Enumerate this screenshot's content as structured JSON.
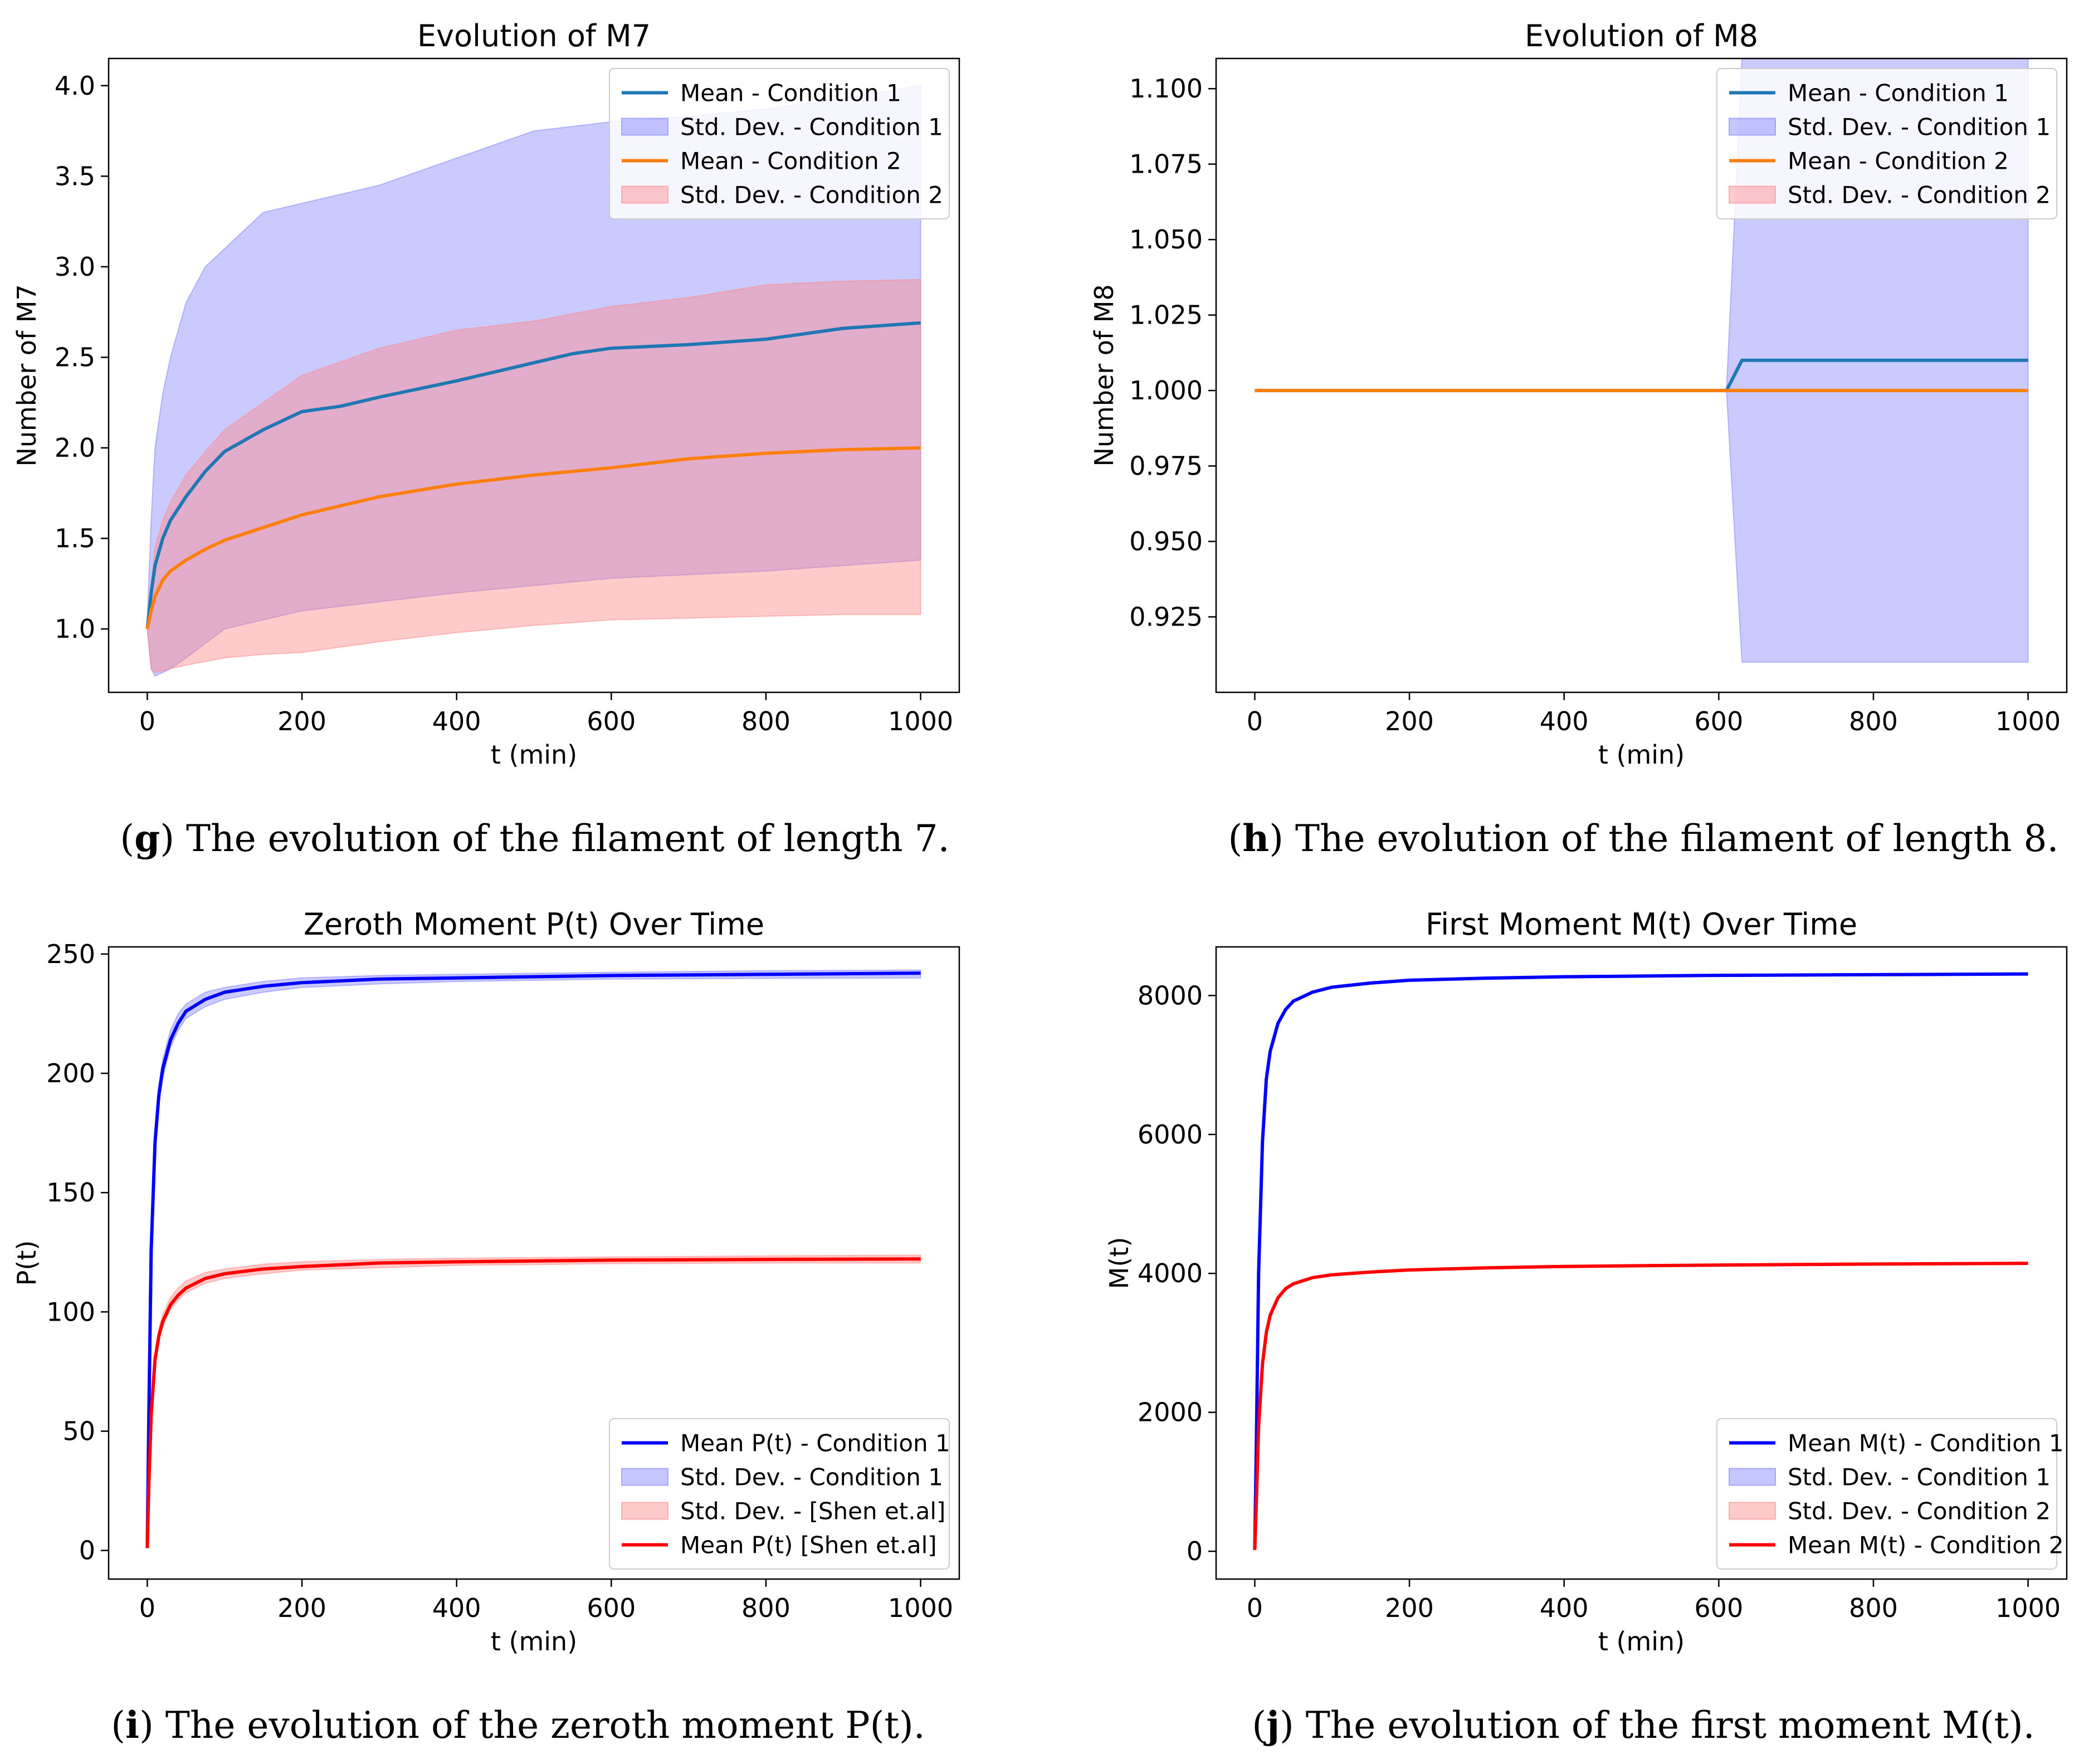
{
  "chart_data": [
    {
      "id": "g",
      "type": "line",
      "title": "Evolution of M7",
      "xlabel": "t (min)",
      "ylabel": "Number of M7",
      "xlim": [
        -50,
        1050
      ],
      "ylim": [
        0.65,
        4.15
      ],
      "xticks": [
        0,
        200,
        400,
        600,
        800,
        1000
      ],
      "xtick_labels": [
        "0",
        "200",
        "400",
        "600",
        "800",
        "1000"
      ],
      "yticks": [
        1.0,
        1.5,
        2.0,
        2.5,
        3.0,
        3.5,
        4.0
      ],
      "ytick_labels": [
        "1.0",
        "1.5",
        "2.0",
        "2.5",
        "3.0",
        "3.5",
        "4.0"
      ],
      "grid": false,
      "legend_position": "upper right",
      "caption_letter": "g",
      "caption_text": "The evolution of the filament of length 7.",
      "legend": [
        {
          "label": "Mean - Condition 1",
          "kind": "line",
          "color": "#1f77b4"
        },
        {
          "label": "Std. Dev. - Condition 1",
          "kind": "band",
          "color": "#8080ff"
        },
        {
          "label": "Mean - Condition 2",
          "kind": "line",
          "color": "#ff7f0e"
        },
        {
          "label": "Std. Dev. - Condition 2",
          "kind": "band",
          "color": "#ff8a8a"
        }
      ],
      "series": [
        {
          "name": "Std. Dev. - Condition 1",
          "kind": "band",
          "color": "#8080ff",
          "opacity": 0.42,
          "x": [
            0,
            5,
            10,
            20,
            30,
            50,
            75,
            100,
            150,
            200,
            300,
            400,
            500,
            600,
            700,
            800,
            900,
            1000
          ],
          "upper": [
            1.05,
            1.6,
            2.0,
            2.3,
            2.5,
            2.8,
            3.0,
            3.1,
            3.3,
            3.35,
            3.45,
            3.6,
            3.75,
            3.8,
            3.83,
            3.87,
            3.93,
            4.0
          ],
          "lower": [
            1.0,
            0.78,
            0.74,
            0.76,
            0.78,
            0.84,
            0.92,
            1.0,
            1.05,
            1.1,
            1.15,
            1.2,
            1.24,
            1.28,
            1.3,
            1.32,
            1.35,
            1.38
          ]
        },
        {
          "name": "Std. Dev. - Condition 2",
          "kind": "band",
          "color": "#ff8a8a",
          "opacity": 0.45,
          "x": [
            0,
            5,
            10,
            20,
            30,
            50,
            75,
            100,
            150,
            200,
            300,
            400,
            500,
            600,
            700,
            800,
            900,
            1000
          ],
          "upper": [
            1.0,
            1.25,
            1.45,
            1.6,
            1.7,
            1.85,
            1.98,
            2.1,
            2.25,
            2.4,
            2.55,
            2.65,
            2.7,
            2.78,
            2.83,
            2.9,
            2.92,
            2.93
          ],
          "lower": [
            1.0,
            0.78,
            0.76,
            0.77,
            0.78,
            0.8,
            0.82,
            0.84,
            0.86,
            0.87,
            0.93,
            0.98,
            1.02,
            1.05,
            1.06,
            1.07,
            1.08,
            1.08
          ]
        },
        {
          "name": "Mean - Condition 1",
          "kind": "line",
          "color": "#1f77b4",
          "x": [
            0,
            5,
            10,
            20,
            30,
            50,
            75,
            100,
            150,
            200,
            250,
            300,
            400,
            500,
            550,
            600,
            700,
            800,
            850,
            900,
            1000
          ],
          "y": [
            1.0,
            1.2,
            1.35,
            1.5,
            1.6,
            1.73,
            1.87,
            1.98,
            2.1,
            2.2,
            2.23,
            2.28,
            2.37,
            2.47,
            2.52,
            2.55,
            2.57,
            2.6,
            2.63,
            2.66,
            2.69
          ]
        },
        {
          "name": "Mean - Condition 2",
          "kind": "line",
          "color": "#ff7f0e",
          "x": [
            0,
            5,
            10,
            20,
            30,
            50,
            75,
            100,
            150,
            200,
            300,
            400,
            500,
            600,
            700,
            800,
            900,
            1000
          ],
          "y": [
            1.0,
            1.1,
            1.18,
            1.27,
            1.32,
            1.38,
            1.44,
            1.49,
            1.56,
            1.63,
            1.73,
            1.8,
            1.85,
            1.89,
            1.94,
            1.97,
            1.99,
            2.0
          ]
        }
      ]
    },
    {
      "id": "h",
      "type": "line",
      "title": "Evolution of M8",
      "xlabel": "t (min)",
      "ylabel": "Number of M8",
      "xlim": [
        -50,
        1050
      ],
      "ylim": [
        0.9,
        1.11
      ],
      "xticks": [
        0,
        200,
        400,
        600,
        800,
        1000
      ],
      "xtick_labels": [
        "0",
        "200",
        "400",
        "600",
        "800",
        "1000"
      ],
      "yticks": [
        0.925,
        0.95,
        0.975,
        1.0,
        1.025,
        1.05,
        1.075,
        1.1
      ],
      "ytick_labels": [
        "0.925",
        "0.950",
        "0.975",
        "1.000",
        "1.025",
        "1.050",
        "1.075",
        "1.100"
      ],
      "grid": false,
      "legend_position": "upper right",
      "caption_letter": "h",
      "caption_text": "The evolution of the filament of length 8.",
      "legend": [
        {
          "label": "Mean - Condition 1",
          "kind": "line",
          "color": "#1f77b4"
        },
        {
          "label": "Std. Dev. - Condition 1",
          "kind": "band",
          "color": "#8080ff"
        },
        {
          "label": "Mean - Condition 2",
          "kind": "line",
          "color": "#ff7f0e"
        },
        {
          "label": "Std. Dev. - Condition 2",
          "kind": "band",
          "color": "#ff8a8a"
        }
      ],
      "series": [
        {
          "name": "Std. Dev. - Condition 1",
          "kind": "band",
          "color": "#8080ff",
          "opacity": 0.42,
          "x": [
            0,
            610,
            630,
            1000
          ],
          "upper": [
            1.0,
            1.0,
            1.11,
            1.11
          ],
          "lower": [
            1.0,
            1.0,
            0.91,
            0.91
          ]
        },
        {
          "name": "Mean - Condition 1",
          "kind": "line",
          "color": "#1f77b4",
          "x": [
            0,
            610,
            630,
            1000
          ],
          "y": [
            1.0,
            1.0,
            1.01,
            1.01
          ]
        },
        {
          "name": "Mean - Condition 2",
          "kind": "line",
          "color": "#ff7f0e",
          "x": [
            0,
            1000
          ],
          "y": [
            1.0,
            1.0
          ]
        }
      ]
    },
    {
      "id": "i",
      "type": "line",
      "title": "Zeroth Moment P(t) Over Time",
      "xlabel": "t (min)",
      "ylabel": "P(t)",
      "xlim": [
        -50,
        1050
      ],
      "ylim": [
        -12,
        253
      ],
      "xticks": [
        0,
        200,
        400,
        600,
        800,
        1000
      ],
      "xtick_labels": [
        "0",
        "200",
        "400",
        "600",
        "800",
        "1000"
      ],
      "yticks": [
        0,
        50,
        100,
        150,
        200,
        250
      ],
      "ytick_labels": [
        "0",
        "50",
        "100",
        "150",
        "200",
        "250"
      ],
      "grid": false,
      "legend_position": "lower right",
      "caption_letter": "i",
      "caption_text": "The evolution of the zeroth moment P(t).",
      "legend": [
        {
          "label": "Mean P(t) - Condition 1",
          "kind": "line",
          "color": "#0000ff"
        },
        {
          "label": "Std. Dev. - Condition 1",
          "kind": "band",
          "color": "#8080ff"
        },
        {
          "label": "Std. Dev. - [Shen et.al]",
          "kind": "band",
          "color": "#ff8a8a"
        },
        {
          "label": "Mean P(t) [Shen et.al]",
          "kind": "line",
          "color": "#ff0000"
        }
      ],
      "series": [
        {
          "name": "Std. Dev. - Condition 1",
          "kind": "band",
          "color": "#8080ff",
          "opacity": 0.42,
          "x": [
            0,
            2,
            5,
            10,
            15,
            20,
            30,
            40,
            50,
            75,
            100,
            150,
            200,
            300,
            400,
            600,
            800,
            1000
          ],
          "upper": [
            1,
            60,
            130,
            175,
            195,
            206,
            218,
            225,
            229,
            234,
            236,
            238.5,
            240,
            241,
            241.5,
            242.3,
            243,
            243.3
          ],
          "lower": [
            1,
            54,
            122,
            167,
            187,
            198,
            211,
            218,
            223,
            228,
            231,
            234,
            236,
            237.5,
            238.5,
            239.5,
            239.8,
            240
          ]
        },
        {
          "name": "Mean P(t) - Condition 1",
          "kind": "line",
          "color": "#0000ff",
          "x": [
            0,
            2,
            5,
            10,
            15,
            20,
            30,
            40,
            50,
            75,
            100,
            150,
            200,
            300,
            400,
            600,
            800,
            1000
          ],
          "y": [
            1,
            57,
            126,
            171,
            191,
            202,
            214,
            221,
            226,
            231,
            234,
            236.5,
            238,
            239.5,
            240,
            241,
            241.5,
            242
          ]
        },
        {
          "name": "Std. Dev. - [Shen et.al]",
          "kind": "band",
          "color": "#ff8a8a",
          "opacity": 0.45,
          "x": [
            0,
            2,
            5,
            10,
            15,
            20,
            30,
            40,
            50,
            75,
            100,
            150,
            200,
            300,
            400,
            600,
            800,
            1000
          ],
          "upper": [
            1,
            30,
            60,
            82,
            93,
            99,
            106,
            110,
            113,
            116.5,
            118,
            120,
            121,
            122,
            122.5,
            123,
            123.5,
            123.8
          ],
          "lower": [
            1,
            26,
            55,
            77,
            88,
            94,
            101,
            105,
            108,
            112,
            114,
            116,
            117.5,
            118.5,
            119.5,
            120.2,
            120.5,
            120.5
          ]
        },
        {
          "name": "Mean P(t) [Shen et.al]",
          "kind": "line",
          "color": "#ff0000",
          "x": [
            0,
            2,
            5,
            10,
            15,
            20,
            30,
            40,
            50,
            75,
            100,
            150,
            200,
            300,
            400,
            600,
            800,
            1000
          ],
          "y": [
            1,
            28,
            57,
            80,
            90,
            96,
            103,
            107,
            110,
            114,
            116,
            118,
            119,
            120.5,
            121,
            121.7,
            122,
            122.2
          ]
        }
      ]
    },
    {
      "id": "j",
      "type": "line",
      "title": "First Moment M(t) Over Time",
      "xlabel": "t (min)",
      "ylabel": "M(t)",
      "xlim": [
        -50,
        1050
      ],
      "ylim": [
        -400,
        8700
      ],
      "xticks": [
        0,
        200,
        400,
        600,
        800,
        1000
      ],
      "xtick_labels": [
        "0",
        "200",
        "400",
        "600",
        "800",
        "1000"
      ],
      "yticks": [
        0,
        2000,
        4000,
        6000,
        8000
      ],
      "ytick_labels": [
        "0",
        "2000",
        "4000",
        "6000",
        "8000"
      ],
      "grid": false,
      "legend_position": "lower right",
      "caption_letter": "j",
      "caption_text": "The evolution of the first moment M(t).",
      "legend": [
        {
          "label": "Mean M(t) - Condition 1",
          "kind": "line",
          "color": "#0000ff"
        },
        {
          "label": "Std. Dev. - Condition 1",
          "kind": "band",
          "color": "#8080ff"
        },
        {
          "label": "Std. Dev. - Condition 2",
          "kind": "band",
          "color": "#ff8a8a"
        },
        {
          "label": "Mean M(t) - Condition 2",
          "kind": "line",
          "color": "#ff0000"
        }
      ],
      "series": [
        {
          "name": "Mean M(t) - Condition 1",
          "kind": "line",
          "color": "#0000ff",
          "x": [
            0,
            2,
            5,
            10,
            15,
            20,
            30,
            40,
            50,
            75,
            100,
            150,
            200,
            300,
            400,
            600,
            800,
            1000
          ],
          "y": [
            20,
            1500,
            4000,
            5900,
            6800,
            7200,
            7600,
            7800,
            7920,
            8050,
            8120,
            8180,
            8220,
            8250,
            8270,
            8290,
            8300,
            8310
          ]
        },
        {
          "name": "Mean M(t) - Condition 2",
          "kind": "line",
          "color": "#ff0000",
          "x": [
            0,
            2,
            5,
            10,
            15,
            20,
            30,
            40,
            50,
            75,
            100,
            150,
            200,
            300,
            400,
            600,
            800,
            1000
          ],
          "y": [
            20,
            700,
            1800,
            2700,
            3150,
            3400,
            3650,
            3780,
            3850,
            3940,
            3980,
            4020,
            4050,
            4080,
            4100,
            4120,
            4135,
            4145
          ]
        }
      ]
    }
  ]
}
